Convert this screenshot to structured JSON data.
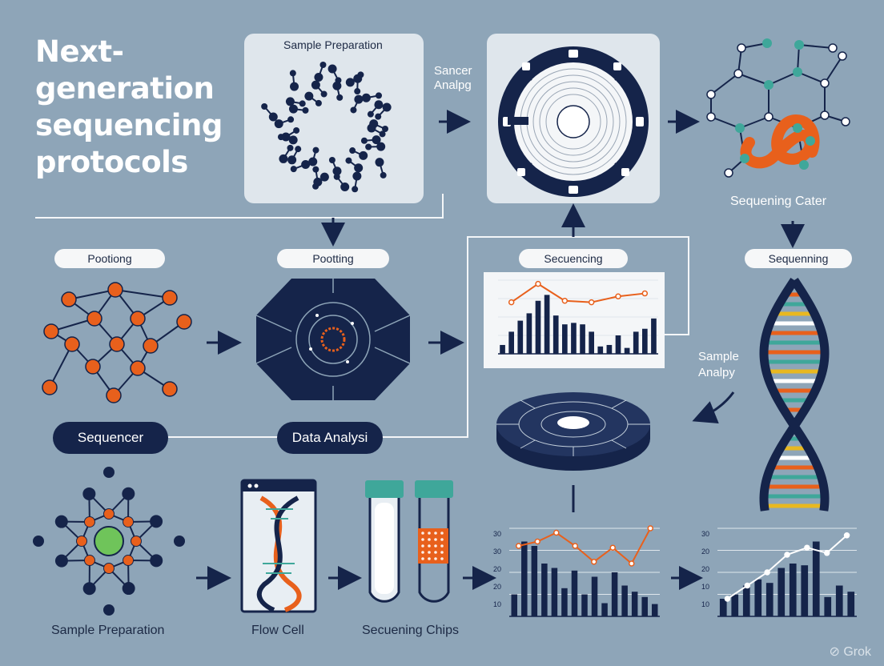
{
  "title_lines": [
    "Next-",
    "generation",
    "sequencing",
    "protocols"
  ],
  "cards": {
    "sample_preparation_top": "Sample Preparation"
  },
  "labels": {
    "sancer_analpg": [
      "Sancer",
      "Analpg"
    ],
    "sequening_cater": "Sequening Cater",
    "sample_analpy": [
      "Sample",
      "Analpy"
    ],
    "sample_preparation_bottom": "Sample Preparation",
    "flow_cell": "Flow Cell",
    "secuening_chips": "Secuening Chips"
  },
  "pills": {
    "pootiong": "Pootiong",
    "pootting": "Pootting",
    "secuencing": "Secuencing",
    "sequenning": "Sequenning"
  },
  "dark_pills": {
    "sequencer": "Sequencer",
    "data_analysi": "Data Analysi"
  },
  "chart_bottom_mid": {
    "y_ticks": [
      "30",
      "30",
      "20",
      "20",
      "10"
    ]
  },
  "chart_bottom_right": {
    "y_ticks": [
      "30",
      "20",
      "20",
      "10",
      "10"
    ]
  },
  "watermark": "Grok",
  "colors": {
    "background": "#8ea5b8",
    "navy": "#15244a",
    "orange": "#e8601c",
    "teal": "#3fa79a",
    "green": "#6fc45a",
    "card": "#dfe6ec"
  }
}
